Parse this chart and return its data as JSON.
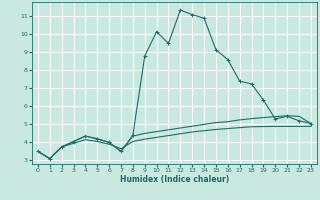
{
  "xlabel": "Humidex (Indice chaleur)",
  "bg_color": "#c8e8e0",
  "grid_color": "#ffffff",
  "line_color": "#1a6e6a",
  "xlim": [
    -0.5,
    23.5
  ],
  "ylim": [
    2.8,
    11.8
  ],
  "xticks": [
    0,
    1,
    2,
    3,
    4,
    5,
    6,
    7,
    8,
    9,
    10,
    11,
    12,
    13,
    14,
    15,
    16,
    17,
    18,
    19,
    20,
    21,
    22,
    23
  ],
  "yticks": [
    3,
    4,
    5,
    6,
    7,
    8,
    9,
    10,
    11
  ],
  "curve1_x": [
    0,
    1,
    2,
    3,
    4,
    5,
    6,
    7,
    8,
    9,
    10,
    11,
    12,
    13,
    14,
    15,
    16,
    17,
    18,
    19,
    20,
    21,
    22,
    23
  ],
  "curve1_y": [
    3.5,
    3.1,
    3.75,
    4.05,
    4.35,
    4.2,
    4.0,
    3.5,
    4.4,
    8.8,
    10.15,
    9.5,
    11.35,
    11.1,
    10.9,
    9.15,
    8.6,
    7.4,
    7.25,
    6.35,
    5.3,
    5.45,
    5.2,
    5.05
  ],
  "curve2_x": [
    0,
    1,
    2,
    3,
    4,
    5,
    6,
    7,
    8,
    9,
    10,
    11,
    12,
    13,
    14,
    15,
    16,
    17,
    18,
    19,
    20,
    21,
    22,
    23
  ],
  "curve2_y": [
    3.5,
    3.1,
    3.75,
    4.05,
    4.35,
    4.2,
    4.0,
    3.5,
    4.35,
    4.5,
    4.6,
    4.7,
    4.8,
    4.9,
    5.0,
    5.1,
    5.15,
    5.25,
    5.32,
    5.38,
    5.43,
    5.48,
    5.45,
    5.05
  ],
  "curve3_x": [
    0,
    1,
    2,
    3,
    4,
    5,
    6,
    7,
    8,
    9,
    10,
    11,
    12,
    13,
    14,
    15,
    16,
    17,
    18,
    19,
    20,
    21,
    22,
    23
  ],
  "curve3_y": [
    3.5,
    3.1,
    3.75,
    3.95,
    4.15,
    4.05,
    3.9,
    3.65,
    4.05,
    4.18,
    4.28,
    4.38,
    4.48,
    4.58,
    4.65,
    4.72,
    4.77,
    4.82,
    4.87,
    4.88,
    4.89,
    4.89,
    4.89,
    4.89
  ]
}
